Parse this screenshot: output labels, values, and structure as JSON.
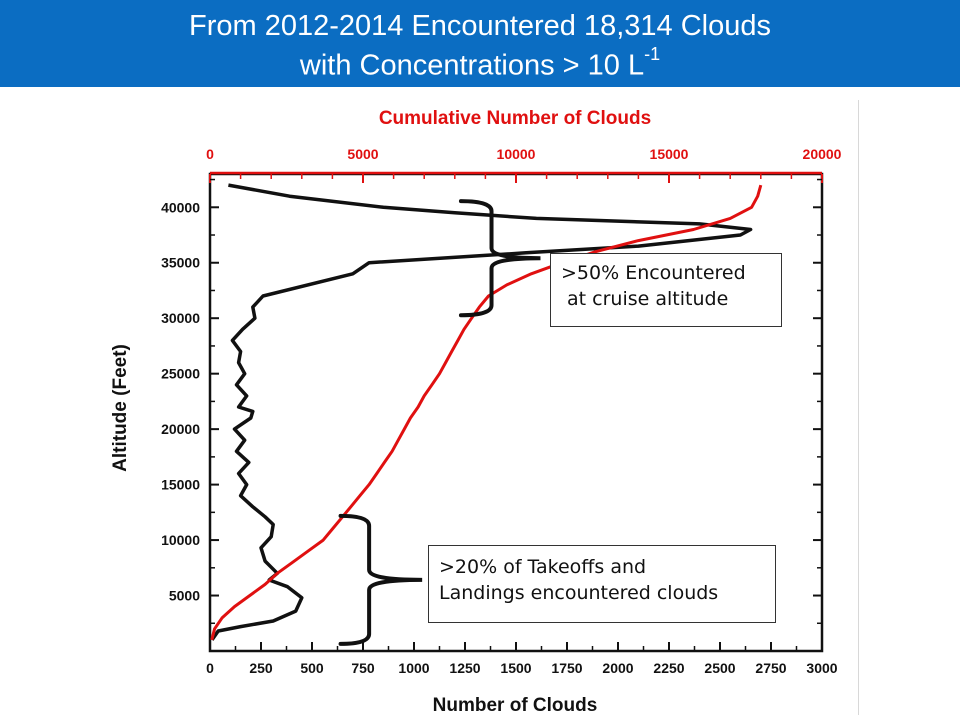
{
  "header": {
    "title_line1": "From 2012-2014 Encountered 18,314 Clouds",
    "title_line2_text": "with Concentrations > 10 L",
    "title_line2_sup": "-1"
  },
  "callouts": {
    "cruise_line1": ">50% Encountered",
    "cruise_line2": " at cruise altitude",
    "takeoff_line1": ">20% of Takeoffs and",
    "takeoff_line2": "Landings encountered clouds"
  },
  "colors": {
    "header_bg": "#0b6dc2",
    "series_black": "#111111",
    "series_red": "#e01010",
    "top_axis": "#e01010"
  },
  "chart_data": {
    "type": "line",
    "ylabel": "Altitude (Feet)",
    "xlabel": "Number of Clouds",
    "x2label": "Cumulative Number of Clouds",
    "ylim": [
      0,
      43000
    ],
    "xlim": [
      0,
      3000
    ],
    "x2lim": [
      0,
      20000
    ],
    "yticks": [
      5000,
      10000,
      15000,
      20000,
      25000,
      30000,
      35000,
      40000
    ],
    "xticks": [
      0,
      250,
      500,
      750,
      1000,
      1250,
      1500,
      1750,
      2000,
      2250,
      2500,
      2750,
      3000
    ],
    "x2ticks": [
      0,
      5000,
      10000,
      15000,
      20000
    ],
    "series": [
      {
        "axis": "bottom",
        "color": "#111111",
        "points": [
          [
            10,
            1000
          ],
          [
            40,
            1800
          ],
          [
            150,
            2200
          ],
          [
            310,
            2700
          ],
          [
            420,
            3600
          ],
          [
            450,
            4800
          ],
          [
            380,
            5800
          ],
          [
            290,
            6400
          ],
          [
            330,
            7000
          ],
          [
            270,
            8100
          ],
          [
            250,
            9300
          ],
          [
            300,
            10300
          ],
          [
            310,
            11400
          ],
          [
            270,
            12100
          ],
          [
            210,
            13000
          ],
          [
            150,
            14000
          ],
          [
            180,
            15000
          ],
          [
            140,
            16000
          ],
          [
            190,
            17000
          ],
          [
            130,
            18000
          ],
          [
            170,
            19000
          ],
          [
            120,
            20000
          ],
          [
            200,
            21000
          ],
          [
            210,
            21600
          ],
          [
            140,
            22000
          ],
          [
            180,
            23000
          ],
          [
            130,
            24000
          ],
          [
            170,
            25000
          ],
          [
            140,
            26000
          ],
          [
            150,
            27000
          ],
          [
            110,
            28000
          ],
          [
            160,
            29000
          ],
          [
            220,
            30000
          ],
          [
            210,
            31000
          ],
          [
            260,
            32000
          ],
          [
            700,
            34000
          ],
          [
            780,
            35000
          ],
          [
            1550,
            35900
          ],
          [
            2100,
            36500
          ],
          [
            2600,
            37500
          ],
          [
            2650,
            38000
          ],
          [
            2400,
            38500
          ],
          [
            1600,
            39000
          ],
          [
            1200,
            39500
          ],
          [
            850,
            40000
          ],
          [
            390,
            41000
          ],
          [
            90,
            42000
          ]
        ]
      },
      {
        "axis": "top",
        "color": "#e01010",
        "points": [
          [
            60,
            1000
          ],
          [
            150,
            2000
          ],
          [
            400,
            3000
          ],
          [
            800,
            4000
          ],
          [
            1300,
            5000
          ],
          [
            1800,
            6000
          ],
          [
            2200,
            7000
          ],
          [
            2700,
            8000
          ],
          [
            3200,
            9000
          ],
          [
            3700,
            10000
          ],
          [
            4000,
            11000
          ],
          [
            4300,
            12000
          ],
          [
            4600,
            13000
          ],
          [
            4900,
            14000
          ],
          [
            5200,
            15000
          ],
          [
            5450,
            16000
          ],
          [
            5700,
            17000
          ],
          [
            5950,
            18000
          ],
          [
            6150,
            19000
          ],
          [
            6350,
            20000
          ],
          [
            6550,
            21000
          ],
          [
            6800,
            22000
          ],
          [
            7000,
            23000
          ],
          [
            7250,
            24000
          ],
          [
            7500,
            25000
          ],
          [
            7700,
            26000
          ],
          [
            7900,
            27000
          ],
          [
            8100,
            28000
          ],
          [
            8300,
            29000
          ],
          [
            8550,
            30000
          ],
          [
            8800,
            31000
          ],
          [
            9100,
            32000
          ],
          [
            9700,
            33000
          ],
          [
            10500,
            34000
          ],
          [
            11500,
            35000
          ],
          [
            12600,
            36000
          ],
          [
            14000,
            37000
          ],
          [
            15800,
            38000
          ],
          [
            17000,
            39000
          ],
          [
            17700,
            40000
          ],
          [
            17900,
            41000
          ],
          [
            18000,
            42000
          ]
        ]
      }
    ],
    "annotations": [
      {
        "text": ">50% Encountered at cruise altitude",
        "span_feet": [
          30000,
          41000
        ]
      },
      {
        "text": ">20% of Takeoffs and Landings encountered clouds",
        "span_feet": [
          1000,
          12000
        ]
      }
    ]
  }
}
